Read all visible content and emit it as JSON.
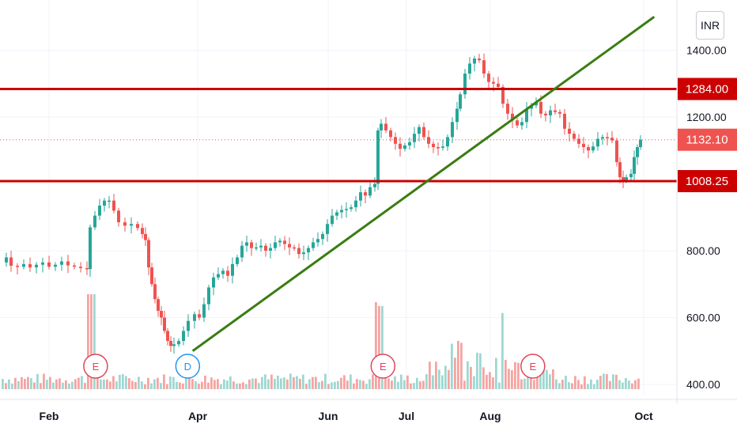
{
  "currency_label": "INR",
  "chart_data": {
    "type": "candlestick",
    "x_ticks": [
      "Feb",
      "Apr",
      "Jun",
      "Jul",
      "Aug",
      "Oct"
    ],
    "y_ticks": [
      "400.00",
      "600.00",
      "800.00",
      "1200.00",
      "1400.00"
    ],
    "ylim": [
      390,
      1500
    ],
    "current_price": "1132.10",
    "horizontal_levels": [
      {
        "price": 1284,
        "label": "1284.00",
        "color": "#cc0000"
      },
      {
        "price": 1008.25,
        "label": "1008.25",
        "color": "#cc0000"
      }
    ],
    "trendline": {
      "color": "#3a7d12",
      "from": {
        "date": "Mar 29",
        "price": 500
      },
      "to": {
        "date": "Oct 5",
        "price": 1500
      }
    },
    "events": [
      {
        "label": "E",
        "date": "Feb 20",
        "kind": "earnings"
      },
      {
        "label": "D",
        "date": "Mar 27",
        "kind": "dividend"
      },
      {
        "label": "E",
        "date": "Jun 22",
        "kind": "earnings"
      },
      {
        "label": "E",
        "date": "Aug 18",
        "kind": "earnings"
      }
    ],
    "colors": {
      "up": "#26a69a",
      "down": "#ef5350",
      "volume_up": "#9ed8d1",
      "volume_down": "#f4a5a2"
    },
    "price_path": [
      [
        0,
        765
      ],
      [
        6,
        780
      ],
      [
        12,
        755
      ],
      [
        20,
        752
      ],
      [
        28,
        760
      ],
      [
        36,
        750
      ],
      [
        44,
        758
      ],
      [
        52,
        765
      ],
      [
        60,
        752
      ],
      [
        68,
        758
      ],
      [
        76,
        768
      ],
      [
        84,
        756
      ],
      [
        92,
        752
      ],
      [
        100,
        748
      ],
      [
        108,
        745
      ],
      [
        112,
        870
      ],
      [
        118,
        905
      ],
      [
        124,
        935
      ],
      [
        130,
        950
      ],
      [
        136,
        950
      ],
      [
        142,
        920
      ],
      [
        148,
        885
      ],
      [
        156,
        875
      ],
      [
        164,
        880
      ],
      [
        172,
        868
      ],
      [
        178,
        850
      ],
      [
        182,
        832
      ],
      [
        186,
        750
      ],
      [
        190,
        700
      ],
      [
        194,
        655
      ],
      [
        198,
        620
      ],
      [
        202,
        600
      ],
      [
        206,
        560
      ],
      [
        210,
        530
      ],
      [
        214,
        515
      ],
      [
        218,
        520
      ],
      [
        224,
        530
      ],
      [
        230,
        560
      ],
      [
        236,
        590
      ],
      [
        244,
        610
      ],
      [
        250,
        600
      ],
      [
        256,
        640
      ],
      [
        262,
        690
      ],
      [
        268,
        720
      ],
      [
        274,
        730
      ],
      [
        280,
        740
      ],
      [
        286,
        725
      ],
      [
        292,
        760
      ],
      [
        298,
        780
      ],
      [
        304,
        815
      ],
      [
        310,
        825
      ],
      [
        316,
        808
      ],
      [
        322,
        810
      ],
      [
        328,
        815
      ],
      [
        334,
        800
      ],
      [
        340,
        808
      ],
      [
        346,
        825
      ],
      [
        352,
        830
      ],
      [
        358,
        820
      ],
      [
        364,
        810
      ],
      [
        370,
        808
      ],
      [
        376,
        790
      ],
      [
        382,
        795
      ],
      [
        388,
        808
      ],
      [
        394,
        825
      ],
      [
        400,
        835
      ],
      [
        406,
        850
      ],
      [
        412,
        880
      ],
      [
        418,
        905
      ],
      [
        424,
        915
      ],
      [
        430,
        922
      ],
      [
        436,
        925
      ],
      [
        442,
        930
      ],
      [
        448,
        950
      ],
      [
        454,
        975
      ],
      [
        460,
        965
      ],
      [
        466,
        990
      ],
      [
        472,
        1000
      ],
      [
        476,
        1160
      ],
      [
        480,
        1180
      ],
      [
        486,
        1160
      ],
      [
        492,
        1140
      ],
      [
        498,
        1120
      ],
      [
        504,
        1105
      ],
      [
        510,
        1115
      ],
      [
        516,
        1125
      ],
      [
        522,
        1150
      ],
      [
        528,
        1170
      ],
      [
        534,
        1140
      ],
      [
        540,
        1120
      ],
      [
        546,
        1110
      ],
      [
        552,
        1108
      ],
      [
        558,
        1112
      ],
      [
        564,
        1140
      ],
      [
        570,
        1185
      ],
      [
        576,
        1225
      ],
      [
        580,
        1268
      ],
      [
        586,
        1330
      ],
      [
        592,
        1360
      ],
      [
        598,
        1375
      ],
      [
        604,
        1370
      ],
      [
        610,
        1330
      ],
      [
        616,
        1305
      ],
      [
        622,
        1300
      ],
      [
        628,
        1290
      ],
      [
        634,
        1240
      ],
      [
        640,
        1210
      ],
      [
        646,
        1190
      ],
      [
        652,
        1175
      ],
      [
        658,
        1185
      ],
      [
        664,
        1225
      ],
      [
        670,
        1235
      ],
      [
        676,
        1245
      ],
      [
        682,
        1210
      ],
      [
        688,
        1205
      ],
      [
        694,
        1220
      ],
      [
        700,
        1215
      ],
      [
        706,
        1210
      ],
      [
        712,
        1165
      ],
      [
        718,
        1150
      ],
      [
        724,
        1135
      ],
      [
        730,
        1120
      ],
      [
        736,
        1110
      ],
      [
        742,
        1100
      ],
      [
        748,
        1112
      ],
      [
        754,
        1135
      ],
      [
        760,
        1140
      ],
      [
        766,
        1138
      ],
      [
        772,
        1130
      ],
      [
        778,
        1065
      ],
      [
        782,
        1020
      ],
      [
        786,
        1010
      ],
      [
        790,
        1020
      ],
      [
        796,
        1030
      ],
      [
        800,
        1080
      ],
      [
        804,
        1110
      ],
      [
        808,
        1132
      ]
    ]
  }
}
